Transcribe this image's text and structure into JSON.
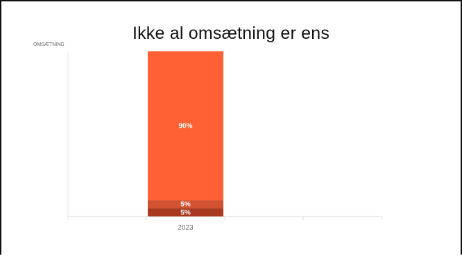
{
  "slide": {
    "title": "Ikke al omsætning er ens"
  },
  "chart_data": {
    "type": "bar",
    "stacked": true,
    "title": "Ikke al omsætning er ens",
    "xlabel": "",
    "ylabel": "OMSÆTNING",
    "categories": [
      "2023"
    ],
    "ylim": [
      0,
      100
    ],
    "grid": false,
    "legend": "none",
    "series": [
      {
        "values": [
          5
        ],
        "label": "5%",
        "color": "#A9391F"
      },
      {
        "values": [
          5
        ],
        "label": "5%",
        "color": "#D2512E"
      },
      {
        "values": [
          90
        ],
        "label": "90%",
        "color": "#FF6134"
      }
    ]
  }
}
